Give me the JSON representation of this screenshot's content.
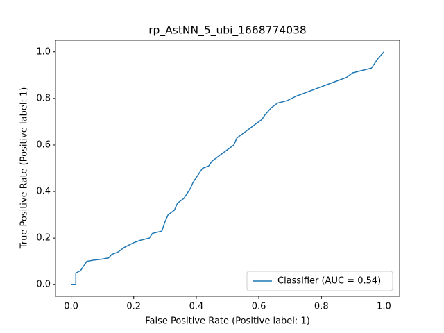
{
  "chart_data": {
    "type": "line",
    "title": "rp_AstNN_5_ubi_1668774038",
    "x_label": "False Positive Rate (Positive label: 1)",
    "y_label": "True Positive Rate (Positive label: 1)",
    "x": [
      0,
      0.015,
      0.015,
      0.03,
      0.04,
      0.05,
      0.07,
      0.1,
      0.12,
      0.13,
      0.15,
      0.17,
      0.2,
      0.22,
      0.25,
      0.26,
      0.29,
      0.3,
      0.31,
      0.33,
      0.34,
      0.36,
      0.38,
      0.39,
      0.41,
      0.42,
      0.44,
      0.45,
      0.48,
      0.5,
      0.52,
      0.53,
      0.55,
      0.57,
      0.59,
      0.61,
      0.62,
      0.64,
      0.66,
      0.69,
      0.72,
      0.76,
      0.8,
      0.84,
      0.88,
      0.9,
      0.96,
      0.98,
      1
    ],
    "series": [
      {
        "name": "Classifier (AUC = 0.54)",
        "color": "#1f77b4",
        "values": [
          0,
          0,
          0.05,
          0.06,
          0.08,
          0.1,
          0.105,
          0.11,
          0.115,
          0.13,
          0.14,
          0.16,
          0.18,
          0.19,
          0.2,
          0.22,
          0.23,
          0.27,
          0.3,
          0.32,
          0.35,
          0.37,
          0.41,
          0.44,
          0.48,
          0.5,
          0.51,
          0.53,
          0.56,
          0.58,
          0.6,
          0.63,
          0.65,
          0.67,
          0.69,
          0.71,
          0.73,
          0.76,
          0.78,
          0.79,
          0.81,
          0.83,
          0.85,
          0.87,
          0.89,
          0.91,
          0.93,
          0.97,
          1
        ]
      }
    ],
    "xlim": [
      -0.05,
      1.05
    ],
    "ylim": [
      -0.05,
      1.05
    ],
    "xticks": [
      {
        "value": 0,
        "label": "0.0"
      },
      0.2,
      0.4,
      0.6,
      0.8,
      {
        "value": 1,
        "label": "1.0"
      }
    ],
    "yticks": [
      {
        "value": 0,
        "label": "0.0"
      },
      0.2,
      0.4,
      0.6,
      0.8,
      {
        "value": 1,
        "label": "1.0"
      }
    ],
    "legend": "lower right",
    "grid": false
  }
}
